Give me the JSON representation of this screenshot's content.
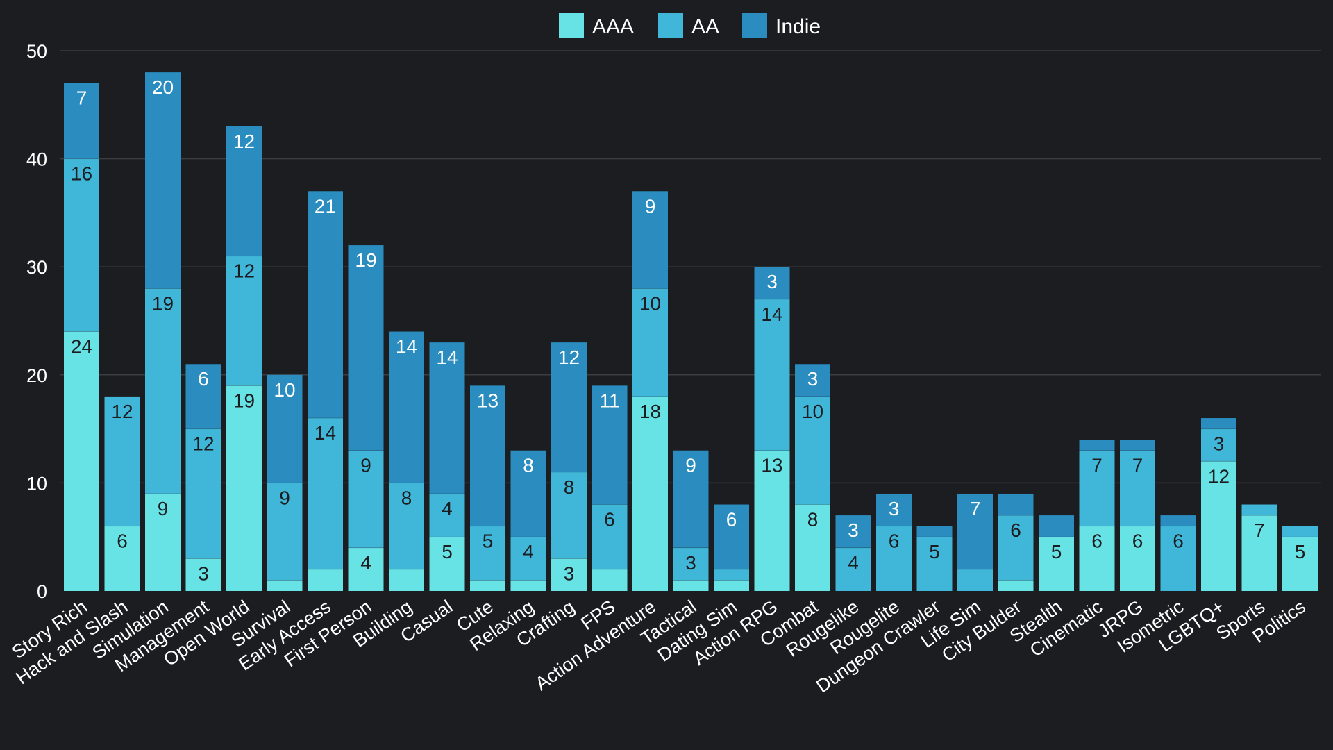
{
  "chart_data": {
    "type": "bar",
    "stacked": true,
    "categories": [
      "Story Rich",
      "Hack and Slash",
      "Simulation",
      "Management",
      "Open World",
      "Survival",
      "Early Access",
      "First Person",
      "Building",
      "Casual",
      "Cute",
      "Relaxing",
      "Crafting",
      "FPS",
      "Action Adventure",
      "Tactical",
      "Dating Sim",
      "Action RPG",
      "Combat",
      "Rougelike",
      "Rougelite",
      "Dungeon Crawler",
      "Life Sim",
      "City Bulder",
      "Stealth",
      "Cinematic",
      "JRPG",
      "Isometric",
      "LGBTQ+",
      "Sports",
      "Politics"
    ],
    "series": [
      {
        "name": "AAA",
        "color": "#67e3e6",
        "label_color": "#1c1d20",
        "values": [
          24,
          6,
          9,
          3,
          19,
          1,
          2,
          4,
          2,
          5,
          1,
          1,
          3,
          2,
          18,
          1,
          1,
          13,
          8,
          0,
          0,
          0,
          0,
          1,
          5,
          6,
          6,
          0,
          12,
          7,
          5
        ]
      },
      {
        "name": "AA",
        "color": "#40b7d9",
        "label_color": "#1c1d20",
        "values": [
          16,
          12,
          19,
          12,
          12,
          9,
          14,
          9,
          8,
          4,
          5,
          4,
          8,
          6,
          10,
          3,
          1,
          14,
          10,
          4,
          6,
          5,
          2,
          6,
          0,
          7,
          7,
          6,
          3,
          1,
          1
        ]
      },
      {
        "name": "Indie",
        "color": "#2a8cbf",
        "label_color": "#ffffff",
        "values": [
          7,
          0,
          20,
          6,
          12,
          10,
          21,
          19,
          14,
          14,
          13,
          8,
          12,
          11,
          9,
          9,
          6,
          3,
          3,
          3,
          3,
          1,
          7,
          2,
          2,
          1,
          1,
          1,
          1,
          0,
          0
        ]
      }
    ],
    "ylim": [
      0,
      50
    ],
    "yticks": [
      0,
      10,
      20,
      30,
      40,
      50
    ],
    "label_threshold": 3,
    "grid": true,
    "legend_position": "top-center"
  }
}
